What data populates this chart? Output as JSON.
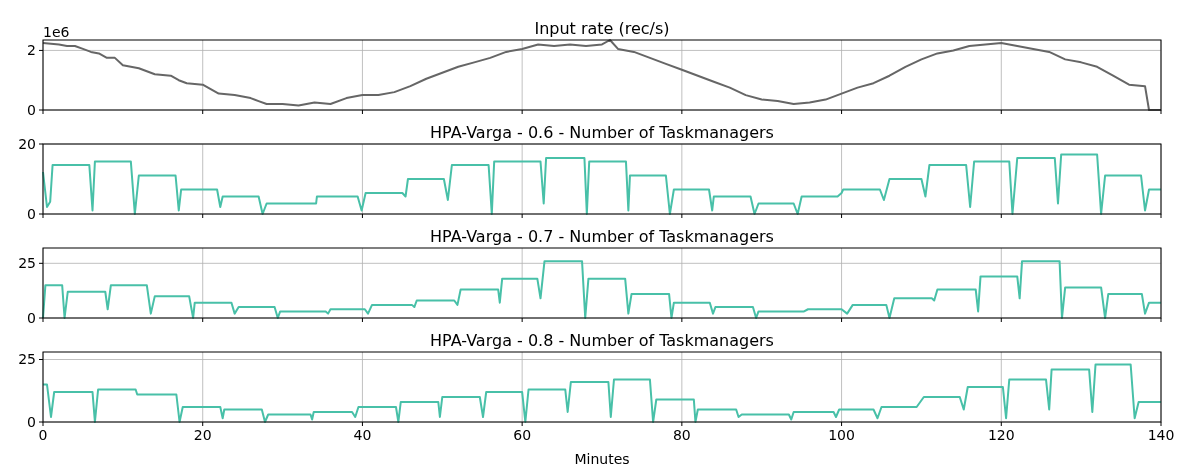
{
  "chart_data": [
    {
      "type": "line",
      "title": "Input rate (rec/s)",
      "annotations": [
        "1e6"
      ],
      "xlim": [
        0,
        140
      ],
      "xticks": [
        0,
        20,
        40,
        60,
        80,
        100,
        120,
        140
      ],
      "ylim": [
        0,
        2.35
      ],
      "yticks": [
        0,
        2
      ],
      "grid": true,
      "tick_labels": "y",
      "color": "#666666",
      "x": [
        0,
        2,
        3,
        4,
        5,
        6,
        7,
        8,
        9,
        10,
        12,
        14,
        16,
        17,
        18,
        20,
        21,
        22,
        24,
        26,
        27,
        28,
        30,
        32,
        34,
        36,
        38,
        40,
        42,
        44,
        46,
        48,
        50,
        52,
        54,
        56,
        58,
        60,
        62,
        64,
        66,
        68,
        70,
        71,
        72,
        74,
        76,
        78,
        80,
        82,
        84,
        86,
        88,
        90,
        92,
        94,
        96,
        98,
        100,
        102,
        104,
        106,
        108,
        110,
        112,
        114,
        116,
        118,
        120,
        121,
        122,
        124,
        126,
        128,
        130,
        132,
        134,
        136,
        138,
        138.5,
        140
      ],
      "values": [
        2.25,
        2.2,
        2.15,
        2.15,
        2.05,
        1.95,
        1.9,
        1.75,
        1.75,
        1.5,
        1.4,
        1.2,
        1.15,
        1.0,
        0.9,
        0.85,
        0.7,
        0.55,
        0.5,
        0.4,
        0.3,
        0.2,
        0.2,
        0.15,
        0.25,
        0.2,
        0.4,
        0.5,
        0.5,
        0.6,
        0.8,
        1.05,
        1.25,
        1.45,
        1.6,
        1.75,
        1.95,
        2.05,
        2.2,
        2.15,
        2.2,
        2.15,
        2.2,
        2.35,
        2.05,
        1.95,
        1.75,
        1.55,
        1.35,
        1.15,
        0.95,
        0.75,
        0.5,
        0.35,
        0.3,
        0.2,
        0.25,
        0.35,
        0.55,
        0.75,
        0.9,
        1.15,
        1.45,
        1.7,
        1.9,
        2.0,
        2.15,
        2.2,
        2.25,
        2.2,
        2.15,
        2.05,
        1.95,
        1.7,
        1.6,
        1.45,
        1.15,
        0.85,
        0.8,
        0,
        0
      ]
    },
    {
      "type": "line",
      "title": "HPA-Varga - 0.6 - Number of Taskmanagers",
      "xlim": [
        0,
        140
      ],
      "xticks": [
        0,
        20,
        40,
        60,
        80,
        100,
        120,
        140
      ],
      "ylim": [
        0,
        20
      ],
      "yticks": [
        0,
        20
      ],
      "grid": true,
      "tick_labels": "y",
      "color": "#48c0a8",
      "x": [
        0,
        0.5,
        0.9,
        1.2,
        5.8,
        6.2,
        6.5,
        11,
        11.5,
        12,
        16.6,
        17,
        17.3,
        21.8,
        22.2,
        22.5,
        27,
        27.5,
        28,
        34.2,
        34.3,
        39.4,
        39.9,
        40.4,
        45,
        45.4,
        45.7,
        50.2,
        50.7,
        51.2,
        55.8,
        56.2,
        56.5,
        62.3,
        62.7,
        63,
        67.8,
        68.1,
        68.4,
        73,
        73.3,
        73.5,
        78,
        78.5,
        79,
        83.4,
        83.8,
        84,
        88.6,
        89.1,
        89.6,
        94,
        94.5,
        95,
        99.5,
        100,
        100.2,
        104.8,
        105.3,
        106,
        110,
        110.5,
        111,
        115.6,
        116.1,
        116.6,
        121,
        121.4,
        122,
        126.7,
        127.1,
        127.5,
        132,
        132.5,
        133,
        137.5,
        138,
        138.5,
        140
      ],
      "values": [
        12,
        2,
        3.5,
        14,
        14,
        1,
        15,
        15,
        0,
        11,
        11,
        1,
        7,
        7,
        2,
        5,
        5,
        0,
        3,
        3,
        5,
        5,
        1,
        6,
        6,
        5,
        10,
        10,
        4,
        14,
        14,
        0,
        15,
        15,
        3,
        16,
        16,
        0,
        15,
        15,
        1,
        11,
        11,
        0,
        7,
        7,
        1,
        5,
        5,
        0,
        3,
        3,
        0,
        5,
        5,
        6,
        7,
        7,
        4,
        10,
        10,
        5,
        14,
        14,
        2,
        15,
        15,
        0,
        16,
        16,
        3,
        17,
        17,
        0,
        11,
        11,
        1,
        7,
        7
      ]
    },
    {
      "type": "line",
      "title": "HPA-Varga - 0.7 - Number of Taskmanagers",
      "xlim": [
        0,
        140
      ],
      "xticks": [
        0,
        20,
        40,
        60,
        80,
        100,
        120,
        140
      ],
      "ylim": [
        0,
        32
      ],
      "yticks": [
        0,
        25
      ],
      "grid": true,
      "tick_labels": "y",
      "color": "#48c0a8",
      "x": [
        0,
        0.3,
        2.4,
        2.7,
        3.1,
        7.8,
        8.1,
        8.5,
        13,
        13.5,
        14,
        18.3,
        18.8,
        19,
        23.6,
        24,
        24.5,
        29,
        29.4,
        29.7,
        35.4,
        35.7,
        36,
        40.3,
        40.7,
        41.2,
        46.2,
        46.5,
        46.8,
        51.5,
        51.9,
        52.3,
        57,
        57.2,
        57.5,
        61.9,
        62.3,
        62.8,
        67.5,
        67.9,
        68.3,
        72.9,
        73.3,
        73.7,
        78.4,
        78.7,
        79,
        83.5,
        83.9,
        84.2,
        88.9,
        89.3,
        89.6,
        95.3,
        95.8,
        100,
        100.7,
        101.4,
        105.6,
        106,
        106.6,
        111.3,
        111.6,
        112,
        116.8,
        117.1,
        117.4,
        122,
        122.3,
        122.6,
        127.3,
        127.6,
        128,
        132.5,
        133,
        133.4,
        137.6,
        138,
        138.5,
        140
      ],
      "values": [
        0,
        15,
        15,
        0,
        12,
        12,
        4,
        15,
        15,
        2,
        10,
        10,
        0,
        7,
        7,
        2,
        5,
        5,
        0,
        3,
        3,
        2,
        4,
        4,
        2,
        6,
        6,
        5,
        8,
        8,
        6,
        13,
        13,
        7,
        18,
        18,
        9,
        26,
        26,
        0,
        18,
        18,
        2,
        11,
        11,
        0,
        7,
        7,
        2,
        5,
        5,
        0,
        3,
        3,
        4,
        4,
        2,
        6,
        6,
        0,
        9,
        9,
        8,
        13,
        13,
        3,
        19,
        19,
        9,
        26,
        26,
        0,
        14,
        14,
        0,
        11,
        11,
        2,
        7,
        7
      ]
    },
    {
      "type": "line",
      "title": "HPA-Varga - 0.8 - Number of Taskmanagers",
      "xlabel": "Minutes",
      "xlim": [
        0,
        140
      ],
      "xticks": [
        0,
        20,
        40,
        60,
        80,
        100,
        120,
        140
      ],
      "ylim": [
        0,
        28
      ],
      "yticks": [
        0,
        25
      ],
      "grid": true,
      "color": "#48c0a8",
      "x": [
        0,
        0.5,
        1,
        1.4,
        6.2,
        6.5,
        6.9,
        11.6,
        11.8,
        16.7,
        17.1,
        17.5,
        22.2,
        22.5,
        22.7,
        27.4,
        27.8,
        28.2,
        33.5,
        33.7,
        33.9,
        38.7,
        39.1,
        39.5,
        44.2,
        44.5,
        44.8,
        49.5,
        49.7,
        50,
        54.7,
        55.1,
        55.5,
        60,
        60.4,
        60.8,
        65.4,
        65.7,
        66.1,
        70.8,
        71.1,
        71.5,
        76,
        76.4,
        76.8,
        81.5,
        81.7,
        82,
        86.8,
        87.1,
        87.5,
        93.4,
        93.7,
        94,
        99,
        99.3,
        99.7,
        104,
        104.5,
        105,
        109.4,
        110.3,
        114.8,
        115.3,
        115.8,
        120.2,
        120.6,
        121,
        125.6,
        126,
        126.3,
        131,
        131.4,
        131.8,
        136.2,
        136.7,
        137.2,
        140
      ],
      "values": [
        15,
        15,
        2,
        12,
        12,
        0,
        13,
        13,
        11,
        11,
        0,
        6,
        6,
        1.5,
        5,
        5,
        0,
        3,
        3,
        1,
        4,
        4,
        2,
        6,
        6,
        0,
        8,
        8,
        2,
        10,
        10,
        2,
        12,
        12,
        0,
        13,
        13,
        4,
        16,
        16,
        2,
        17,
        17,
        0,
        9,
        9,
        0,
        5,
        5,
        2,
        3,
        3,
        1,
        4,
        4,
        2,
        5,
        5,
        1.5,
        6,
        6,
        10,
        10,
        5,
        14,
        14,
        1.5,
        17,
        17,
        5,
        21,
        21,
        4,
        23,
        23,
        1.5,
        8,
        8
      ]
    }
  ]
}
